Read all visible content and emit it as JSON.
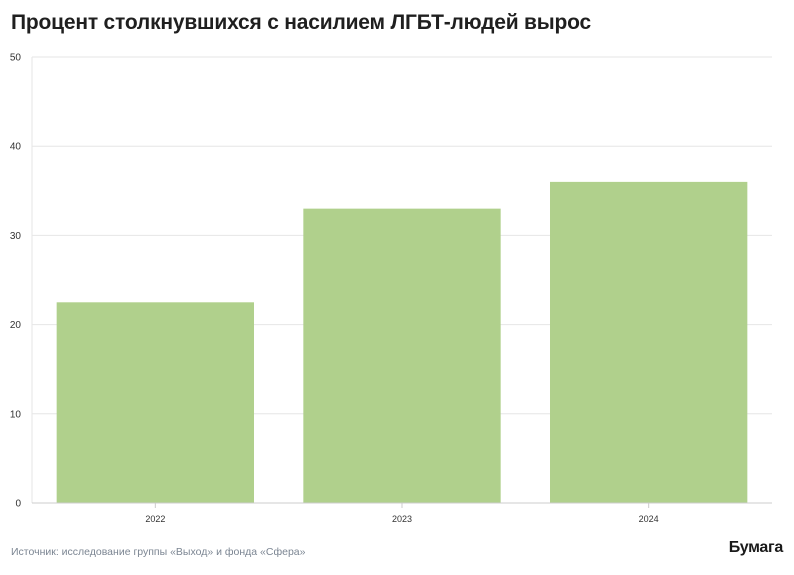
{
  "header": {
    "title": "Процент столкнувшихся с насилием ЛГБТ-людей вырос"
  },
  "footer": {
    "source": "Источник: исследование группы «Выход» и фонда «Сфера»",
    "logo": "Бумага"
  },
  "colors": {
    "bar": "#b0d08c",
    "grid": "#e6e6e6",
    "axis": "#cccccc",
    "tick_text": "#333333"
  },
  "chart_data": {
    "type": "bar",
    "title": "Процент столкнувшихся с насилием ЛГБТ-людей вырос",
    "xlabel": "",
    "ylabel": "",
    "categories": [
      "2022",
      "2023",
      "2024"
    ],
    "values": [
      22.5,
      33,
      36
    ],
    "ylim": [
      0,
      50
    ],
    "yticks": [
      0,
      10,
      20,
      30,
      40,
      50
    ],
    "grid": true,
    "legend": "none"
  }
}
